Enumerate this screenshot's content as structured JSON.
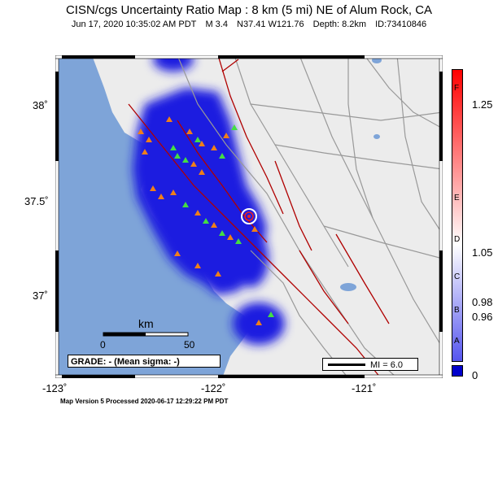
{
  "header": {
    "title": "CISN/cgs Uncertainty Ratio Map : 8 km (5 mi) NE of Alum Rock, CA",
    "date": "Jun 17, 2020 10:35:02 AM PDT",
    "magnitude": "M 3.4",
    "location": "N37.41 W121.76",
    "depth": "Depth: 8.2km",
    "event_id": "ID:73410846"
  },
  "axes": {
    "x_ticks": [
      "-123˚",
      "-122˚",
      "-121˚"
    ],
    "y_ticks": [
      "38˚",
      "37.5˚",
      "37˚"
    ]
  },
  "scale_bar": {
    "unit": "km",
    "start": "0",
    "end": "50"
  },
  "grade": "GRADE: - (Mean sigma: -)",
  "mi_legend": "MI = 6.0",
  "colorbar": {
    "values": [
      "1.25",
      "1.05",
      "0.98",
      "0.96",
      "0"
    ],
    "letters": [
      "F",
      "E",
      "D",
      "C",
      "B",
      "A"
    ],
    "colors": {
      "top": "#ff0000",
      "mid": "#ffffff",
      "low": "#0000cc"
    }
  },
  "footer": "Map Version 5 Processed 2020-06-17 12:29:22 PM PDT",
  "epicenter": {
    "lat": 37.41,
    "lon": -121.76
  }
}
